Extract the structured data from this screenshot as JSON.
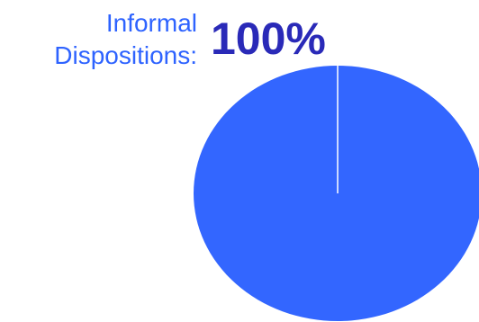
{
  "header": {
    "label_line1": "Informal",
    "label_line2": "Dispositions:",
    "value": "100%"
  },
  "colors": {
    "label": "#2e63ff",
    "value": "#2a2ab8",
    "slice": "#3366ff",
    "divider": "#ffffff"
  },
  "chart_data": {
    "type": "pie",
    "categories": [
      "Informal Dispositions"
    ],
    "values": [
      100
    ],
    "unit": "%"
  }
}
